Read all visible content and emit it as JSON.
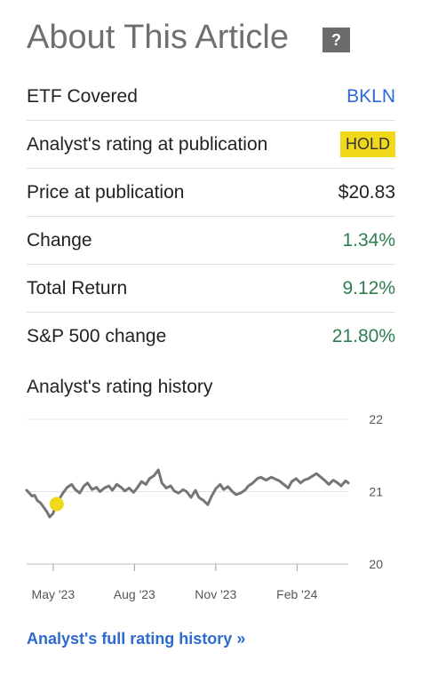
{
  "header": {
    "title": "About This Article",
    "help_icon": "?"
  },
  "rows": [
    {
      "label": "ETF Covered",
      "value": "BKLN",
      "style": "link"
    },
    {
      "label": "Analyst's rating at publication",
      "value": "HOLD",
      "style": "badge"
    },
    {
      "label": "Price at publication",
      "value": "$20.83",
      "style": "plain"
    },
    {
      "label": "Change",
      "value": "1.34%",
      "style": "positive"
    },
    {
      "label": "Total Return",
      "value": "9.12%",
      "style": "positive"
    },
    {
      "label": "S&P 500 change",
      "value": "21.80%",
      "style": "positive"
    }
  ],
  "rating_history": {
    "label": "Analyst's rating history",
    "link_text": "Analyst's full rating history »"
  },
  "chart_data": {
    "type": "line",
    "x_ticks": [
      "May '23",
      "Aug '23",
      "Nov '23",
      "Feb '24"
    ],
    "y_ticks": [
      20,
      21,
      22
    ],
    "ylim": [
      20,
      22
    ],
    "grid": true,
    "marker": {
      "date": "2023-05-05",
      "price": 20.83,
      "rating": "HOLD",
      "color": "#f0d81a"
    },
    "series": [
      {
        "values": [
          [
            "2023-04-01",
            21.02
          ],
          [
            "2023-04-04",
            20.98
          ],
          [
            "2023-04-07",
            20.94
          ],
          [
            "2023-04-10",
            20.95
          ],
          [
            "2023-04-13",
            20.88
          ],
          [
            "2023-04-17",
            20.84
          ],
          [
            "2023-04-20",
            20.79
          ],
          [
            "2023-04-24",
            20.72
          ],
          [
            "2023-04-27",
            20.65
          ],
          [
            "2023-05-01",
            20.7
          ],
          [
            "2023-05-04",
            20.82
          ],
          [
            "2023-05-08",
            20.9
          ],
          [
            "2023-05-12",
            20.98
          ],
          [
            "2023-05-17",
            21.06
          ],
          [
            "2023-05-22",
            21.1
          ],
          [
            "2023-05-26",
            21.03
          ],
          [
            "2023-05-31",
            20.98
          ],
          [
            "2023-06-05",
            21.08
          ],
          [
            "2023-06-09",
            21.12
          ],
          [
            "2023-06-14",
            21.03
          ],
          [
            "2023-06-19",
            21.06
          ],
          [
            "2023-06-23",
            21.0
          ],
          [
            "2023-06-28",
            21.05
          ],
          [
            "2023-07-03",
            21.08
          ],
          [
            "2023-07-07",
            21.02
          ],
          [
            "2023-07-12",
            21.1
          ],
          [
            "2023-07-17",
            21.06
          ],
          [
            "2023-07-21",
            21.01
          ],
          [
            "2023-07-26",
            21.05
          ],
          [
            "2023-07-31",
            20.99
          ],
          [
            "2023-08-04",
            21.05
          ],
          [
            "2023-08-09",
            21.14
          ],
          [
            "2023-08-14",
            21.1
          ],
          [
            "2023-08-18",
            21.18
          ],
          [
            "2023-08-23",
            21.22
          ],
          [
            "2023-08-28",
            21.3
          ],
          [
            "2023-09-01",
            21.12
          ],
          [
            "2023-09-06",
            21.05
          ],
          [
            "2023-09-11",
            21.08
          ],
          [
            "2023-09-15",
            21.01
          ],
          [
            "2023-09-20",
            20.98
          ],
          [
            "2023-09-25",
            21.03
          ],
          [
            "2023-09-29",
            21.0
          ],
          [
            "2023-10-04",
            20.92
          ],
          [
            "2023-10-09",
            21.02
          ],
          [
            "2023-10-13",
            20.92
          ],
          [
            "2023-10-18",
            20.88
          ],
          [
            "2023-10-23",
            20.82
          ],
          [
            "2023-10-27",
            20.93
          ],
          [
            "2023-11-01",
            21.04
          ],
          [
            "2023-11-06",
            21.1
          ],
          [
            "2023-11-10",
            21.03
          ],
          [
            "2023-11-15",
            21.07
          ],
          [
            "2023-11-20",
            21.0
          ],
          [
            "2023-11-24",
            20.96
          ],
          [
            "2023-11-29",
            20.98
          ],
          [
            "2023-12-04",
            21.02
          ],
          [
            "2023-12-08",
            21.08
          ],
          [
            "2023-12-13",
            21.12
          ],
          [
            "2023-12-18",
            21.18
          ],
          [
            "2023-12-22",
            21.2
          ],
          [
            "2023-12-28",
            21.16
          ],
          [
            "2024-01-03",
            21.2
          ],
          [
            "2024-01-08",
            21.17
          ],
          [
            "2024-01-12",
            21.15
          ],
          [
            "2024-01-17",
            21.1
          ],
          [
            "2024-01-22",
            21.05
          ],
          [
            "2024-01-26",
            21.14
          ],
          [
            "2024-01-31",
            21.18
          ],
          [
            "2024-02-05",
            21.12
          ],
          [
            "2024-02-09",
            21.16
          ],
          [
            "2024-02-14",
            21.18
          ],
          [
            "2024-02-19",
            21.22
          ],
          [
            "2024-02-23",
            21.25
          ],
          [
            "2024-02-28",
            21.2
          ],
          [
            "2024-03-04",
            21.15
          ],
          [
            "2024-03-08",
            21.1
          ],
          [
            "2024-03-13",
            21.16
          ],
          [
            "2024-03-18",
            21.12
          ],
          [
            "2024-03-22",
            21.08
          ],
          [
            "2024-03-27",
            21.15
          ],
          [
            "2024-03-30",
            21.12
          ]
        ]
      }
    ]
  }
}
